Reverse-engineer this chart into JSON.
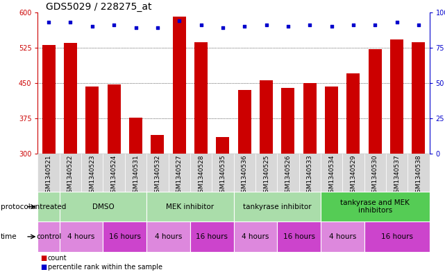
{
  "title": "GDS5029 / 228275_at",
  "samples": [
    "GSM1340521",
    "GSM1340522",
    "GSM1340523",
    "GSM1340524",
    "GSM1340531",
    "GSM1340532",
    "GSM1340527",
    "GSM1340528",
    "GSM1340535",
    "GSM1340536",
    "GSM1340525",
    "GSM1340526",
    "GSM1340533",
    "GSM1340534",
    "GSM1340529",
    "GSM1340530",
    "GSM1340537",
    "GSM1340538"
  ],
  "counts": [
    530,
    535,
    443,
    447,
    377,
    340,
    590,
    537,
    336,
    435,
    455,
    440,
    450,
    443,
    470,
    522,
    542,
    536
  ],
  "percentiles": [
    93,
    93,
    90,
    91,
    89,
    89,
    94,
    91,
    89,
    90,
    91,
    90,
    91,
    90,
    91,
    91,
    93,
    91
  ],
  "ylim_left": [
    300,
    600
  ],
  "ylim_right": [
    0,
    100
  ],
  "yticks_left": [
    300,
    375,
    450,
    525,
    600
  ],
  "yticks_right": [
    0,
    25,
    50,
    75,
    100
  ],
  "bar_color": "#cc0000",
  "dot_color": "#0000cc",
  "bar_width": 0.6,
  "protocol_groups": [
    {
      "label": "untreated",
      "start": 0,
      "end": 1,
      "color": "#aaddaa"
    },
    {
      "label": "DMSO",
      "start": 1,
      "end": 5,
      "color": "#aaddaa"
    },
    {
      "label": "MEK inhibitor",
      "start": 5,
      "end": 9,
      "color": "#aaddaa"
    },
    {
      "label": "tankyrase inhibitor",
      "start": 9,
      "end": 13,
      "color": "#aaddaa"
    },
    {
      "label": "tankyrase and MEK\ninhibitors",
      "start": 13,
      "end": 18,
      "color": "#55cc55"
    }
  ],
  "time_groups": [
    {
      "label": "control",
      "start": 0,
      "end": 1,
      "color": "#dd88dd"
    },
    {
      "label": "4 hours",
      "start": 1,
      "end": 3,
      "color": "#dd88dd"
    },
    {
      "label": "16 hours",
      "start": 3,
      "end": 5,
      "color": "#cc44cc"
    },
    {
      "label": "4 hours",
      "start": 5,
      "end": 7,
      "color": "#dd88dd"
    },
    {
      "label": "16 hours",
      "start": 7,
      "end": 9,
      "color": "#cc44cc"
    },
    {
      "label": "4 hours",
      "start": 9,
      "end": 11,
      "color": "#dd88dd"
    },
    {
      "label": "16 hours",
      "start": 11,
      "end": 13,
      "color": "#cc44cc"
    },
    {
      "label": "4 hours",
      "start": 13,
      "end": 15,
      "color": "#dd88dd"
    },
    {
      "label": "16 hours",
      "start": 15,
      "end": 18,
      "color": "#cc44cc"
    }
  ],
  "sample_bg_color": "#d8d8d8",
  "xlabel_color": "#cc0000",
  "right_axis_color": "#0000cc",
  "background_color": "#ffffff",
  "title_fontsize": 10,
  "tick_fontsize": 7,
  "sample_fontsize": 6.5,
  "row_fontsize": 7.5,
  "legend_fontsize": 7
}
